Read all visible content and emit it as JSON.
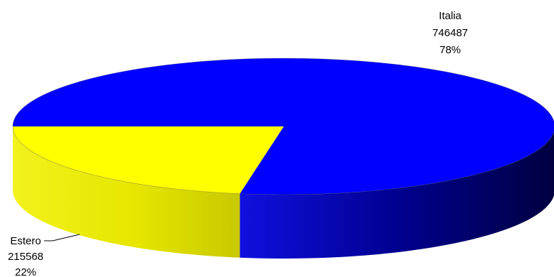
{
  "chart_data": {
    "type": "pie",
    "style": "3d",
    "title": "",
    "slices": [
      {
        "label": "Italia",
        "value": 746487,
        "percent": "78%",
        "color": "#0000ff",
        "side_color": "#000080"
      },
      {
        "label": "Estero",
        "value": 215568,
        "percent": "22%",
        "color": "#ffff00",
        "side_color": "#d4d400"
      }
    ]
  }
}
